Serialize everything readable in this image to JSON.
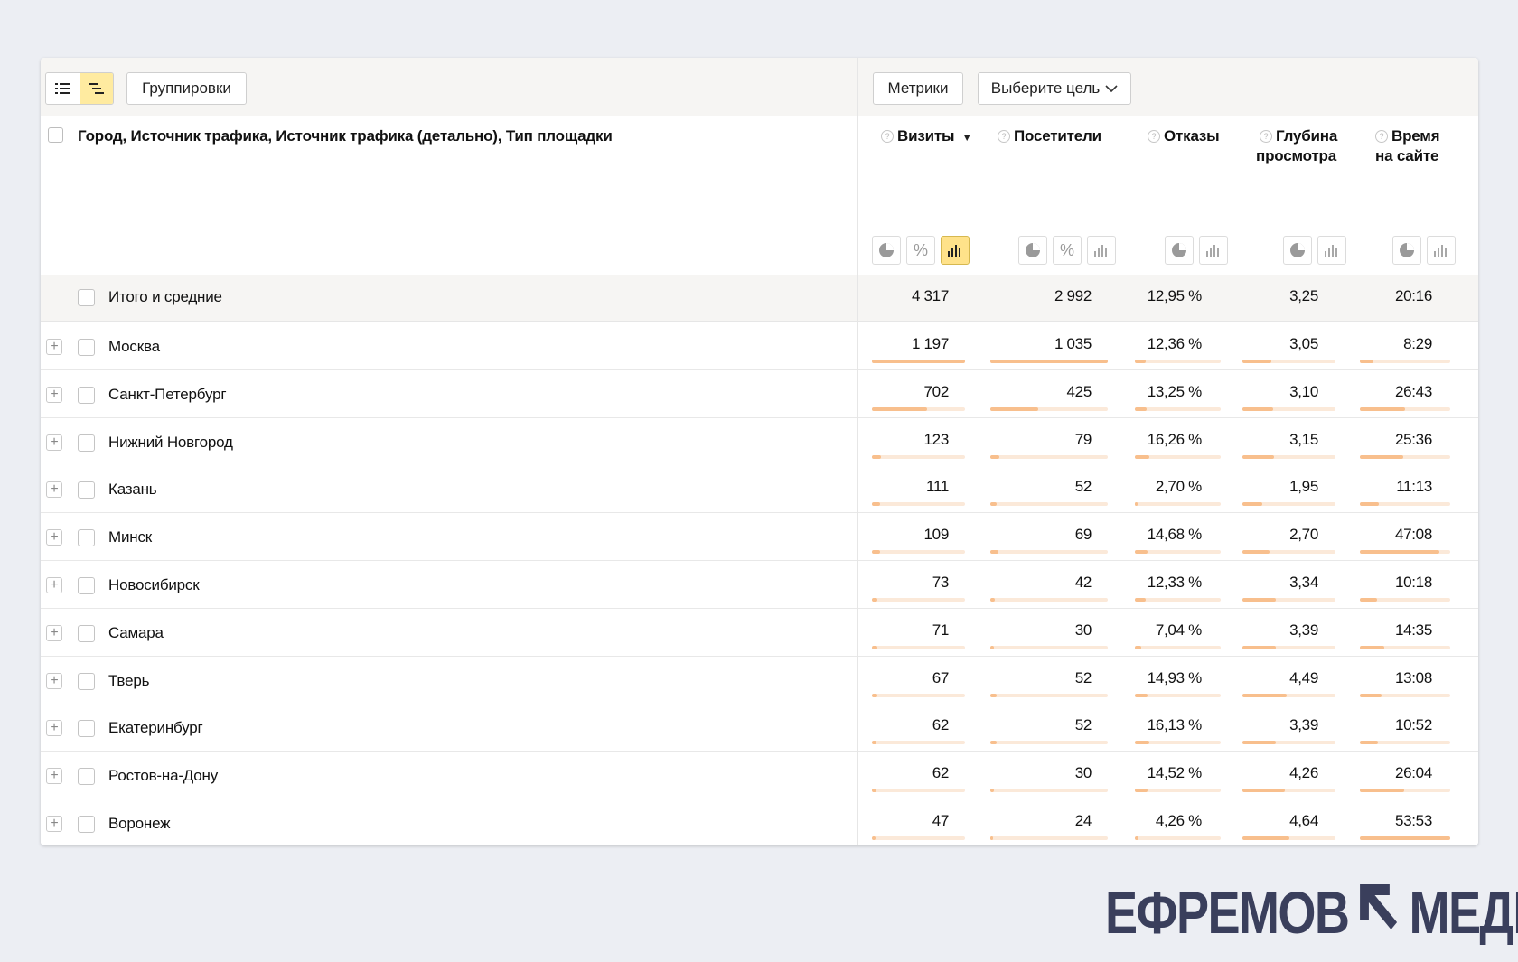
{
  "toolbar": {
    "groupings_label": "Группировки",
    "metrics_label": "Метрики",
    "goal_label": "Выберите цель"
  },
  "table": {
    "dimension_header": "Город, Источник трафика, Источник трафика (детально), Тип площадки",
    "metric_headers": [
      {
        "line1": "Визиты",
        "line2": "",
        "sort": "▼"
      },
      {
        "line1": "Посетители",
        "line2": ""
      },
      {
        "line1": "Отказы",
        "line2": ""
      },
      {
        "line1": "Глубина",
        "line2": "просмотра"
      },
      {
        "line1": "Время",
        "line2": "на сайте"
      }
    ],
    "total": {
      "label": "Итого и средние",
      "values": [
        "4 317",
        "2 992",
        "12,95 %",
        "3,25",
        "20:16"
      ]
    },
    "rows": [
      {
        "name": "Москва",
        "values": [
          "1 197",
          "1 035",
          "12,36 %",
          "3,05",
          "8:29"
        ],
        "bars": [
          1.0,
          1.0,
          0.13,
          0.31,
          0.15
        ]
      },
      {
        "name": "Санкт-Петербург",
        "values": [
          "702",
          "425",
          "13,25 %",
          "3,10",
          "26:43"
        ],
        "bars": [
          0.59,
          0.41,
          0.14,
          0.33,
          0.5
        ]
      },
      {
        "name": "Нижний Новгород",
        "values": [
          "123",
          "79",
          "16,26 %",
          "3,15",
          "25:36"
        ],
        "bars": [
          0.1,
          0.08,
          0.17,
          0.34,
          0.48
        ]
      },
      {
        "name": "Казань",
        "values": [
          "111",
          "52",
          "2,70 %",
          "1,95",
          "11:13"
        ],
        "bars": [
          0.09,
          0.05,
          0.03,
          0.21,
          0.21
        ]
      },
      {
        "name": "Минск",
        "values": [
          "109",
          "69",
          "14,68 %",
          "2,70",
          "47:08"
        ],
        "bars": [
          0.09,
          0.07,
          0.15,
          0.29,
          0.88
        ]
      },
      {
        "name": "Новосибирск",
        "values": [
          "73",
          "42",
          "12,33 %",
          "3,34",
          "10:18"
        ],
        "bars": [
          0.06,
          0.04,
          0.13,
          0.36,
          0.19
        ]
      },
      {
        "name": "Самара",
        "values": [
          "71",
          "30",
          "7,04 %",
          "3,39",
          "14:35"
        ],
        "bars": [
          0.06,
          0.03,
          0.07,
          0.36,
          0.27
        ]
      },
      {
        "name": "Тверь",
        "values": [
          "67",
          "52",
          "14,93 %",
          "4,49",
          "13:08"
        ],
        "bars": [
          0.06,
          0.05,
          0.15,
          0.48,
          0.24
        ]
      },
      {
        "name": "Екатеринбург",
        "values": [
          "62",
          "52",
          "16,13 %",
          "3,39",
          "10:52"
        ],
        "bars": [
          0.05,
          0.05,
          0.17,
          0.36,
          0.2
        ]
      },
      {
        "name": "Ростов-на-Дону",
        "values": [
          "62",
          "30",
          "14,52 %",
          "4,26",
          "26:04"
        ],
        "bars": [
          0.05,
          0.03,
          0.15,
          0.46,
          0.49
        ]
      },
      {
        "name": "Воронеж",
        "values": [
          "47",
          "24",
          "4,26 %",
          "4,64",
          "53:53"
        ],
        "bars": [
          0.04,
          0.02,
          0.04,
          0.5,
          1.0
        ]
      }
    ]
  },
  "logo": {
    "left": "ЕФРЕМОВ",
    "right": "МЕДИА"
  },
  "colors": {
    "accent_yellow": "#ffe28a",
    "bar_fill": "#f8bf8d",
    "bar_track": "#fbe9d9",
    "logo": "#3a3f5c"
  }
}
